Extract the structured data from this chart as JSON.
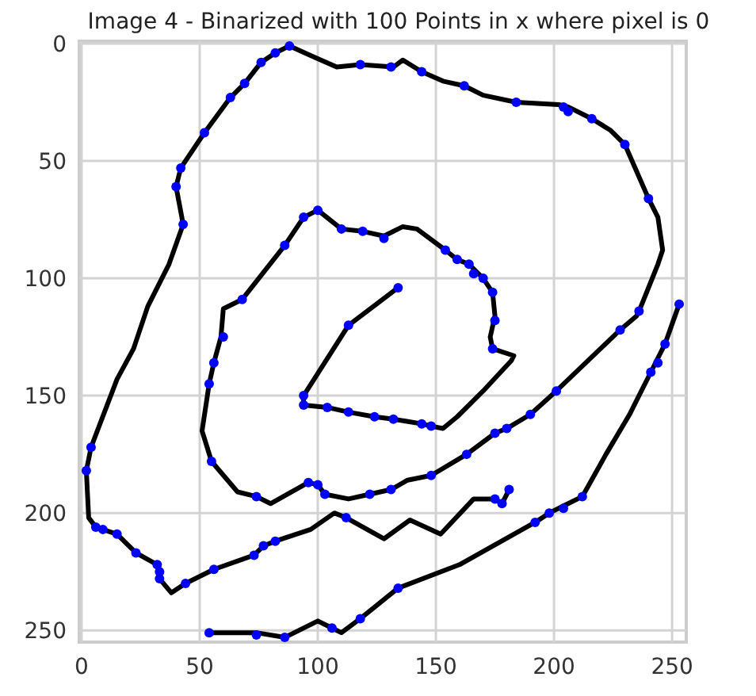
{
  "chart_data": {
    "type": "scatter",
    "title": "Image 4 - Binarized with 100 Points in x where pixel is 0",
    "xlim": [
      -1,
      256
    ],
    "ylim": [
      255,
      -1
    ],
    "xticks": [
      0,
      50,
      100,
      150,
      200,
      250
    ],
    "yticks": [
      0,
      50,
      100,
      150,
      200,
      250
    ],
    "grid": true,
    "series": [
      {
        "type": "line",
        "color": "#000000",
        "marker": "none",
        "x": [
          54,
          74,
          86,
          100,
          106,
          110,
          118,
          134,
          160,
          192,
          198,
          204,
          212,
          222,
          232,
          241,
          247,
          253
        ],
        "values": [
          251,
          251,
          253,
          246,
          249,
          251,
          245,
          232,
          222,
          204,
          200,
          197,
          193,
          175,
          158,
          140,
          128,
          111
        ]
      },
      {
        "type": "line",
        "color": "#000000",
        "marker": "none",
        "x": [
          134,
          113,
          94,
          94,
          104,
          113,
          124,
          132,
          144,
          148,
          153,
          159,
          170,
          182,
          183,
          174,
          173,
          175,
          174,
          170,
          164,
          159,
          154,
          142,
          136,
          128,
          119,
          110,
          100,
          94,
          86,
          68,
          60,
          59,
          56,
          54,
          51,
          55,
          66,
          74,
          80,
          96,
          100,
          103,
          113,
          122,
          131,
          138,
          148,
          163,
          175,
          180,
          190,
          201,
          228,
          235,
          236,
          244,
          246,
          244,
          240,
          230,
          224,
          216,
          206,
          202,
          184,
          170,
          162,
          153,
          144,
          136,
          132,
          118,
          108,
          99,
          88,
          82,
          76,
          69,
          63,
          52,
          42,
          40,
          43,
          37,
          28,
          22,
          15,
          4,
          2,
          3,
          6,
          15,
          23,
          32,
          33,
          38,
          44,
          56,
          73,
          77,
          82,
          97,
          107,
          112,
          128,
          139,
          152,
          166,
          175,
          178,
          181
        ],
        "values": [
          104,
          120,
          150,
          154,
          155,
          157,
          159,
          160,
          162,
          163,
          164,
          159,
          148,
          135,
          133,
          130,
          125,
          116,
          106,
          100,
          94,
          92,
          88,
          79,
          78,
          82,
          80,
          79,
          71,
          74,
          86,
          109,
          113,
          125,
          136,
          145,
          165,
          178,
          191,
          193,
          196,
          187,
          188,
          192,
          194,
          192,
          190,
          186,
          184,
          175,
          166,
          164,
          158,
          148,
          122,
          116,
          114,
          94,
          88,
          74,
          66,
          43,
          37,
          32,
          27,
          26,
          25,
          22,
          18,
          16,
          12,
          7,
          10,
          9,
          10,
          6,
          1,
          4,
          8,
          17,
          23,
          38,
          53,
          61,
          77,
          94,
          112,
          130,
          143,
          172,
          182,
          202,
          206,
          209,
          217,
          222,
          228,
          234,
          230,
          224,
          218,
          214,
          212,
          207,
          200,
          202,
          211,
          203,
          209,
          194,
          194,
          196,
          190
        ]
      },
      {
        "color": "#0000ff",
        "marker": "circle",
        "x": [
          88,
          82,
          76,
          69,
          63,
          52,
          42,
          40,
          43,
          118,
          131,
          100,
          94,
          110,
          119,
          128,
          86,
          68,
          134,
          113,
          144,
          162,
          184,
          204,
          206,
          216,
          230,
          240,
          154,
          159,
          164,
          166,
          170,
          174,
          175,
          236,
          228,
          253,
          247,
          60,
          56,
          54,
          4,
          2,
          55,
          94,
          94,
          104,
          113,
          124,
          132,
          96,
          100,
          103,
          74,
          122,
          131,
          6,
          9,
          15,
          23,
          32,
          33,
          33,
          44,
          56,
          73,
          77,
          82,
          112,
          54,
          74,
          86,
          106,
          118,
          134,
          144,
          148,
          148,
          163,
          175,
          180,
          190,
          201,
          174,
          175,
          178,
          181,
          192,
          198,
          204,
          212,
          241,
          244
        ],
        "values": [
          1,
          4,
          8,
          17,
          23,
          38,
          53,
          61,
          77,
          9,
          10,
          71,
          74,
          79,
          80,
          83,
          86,
          109,
          104,
          120,
          12,
          18,
          25,
          27,
          29,
          32,
          43,
          66,
          88,
          92,
          94,
          98,
          100,
          106,
          118,
          114,
          122,
          111,
          128,
          125,
          136,
          145,
          172,
          182,
          178,
          150,
          154,
          155,
          157,
          159,
          160,
          187,
          188,
          192,
          193,
          192,
          190,
          206,
          207,
          209,
          217,
          222,
          225,
          228,
          230,
          224,
          218,
          214,
          212,
          202,
          251,
          252,
          253,
          249,
          245,
          232,
          162,
          163,
          184,
          175,
          166,
          164,
          158,
          148,
          130,
          194,
          196,
          190,
          204,
          200,
          198,
          193,
          140,
          136
        ]
      }
    ]
  }
}
